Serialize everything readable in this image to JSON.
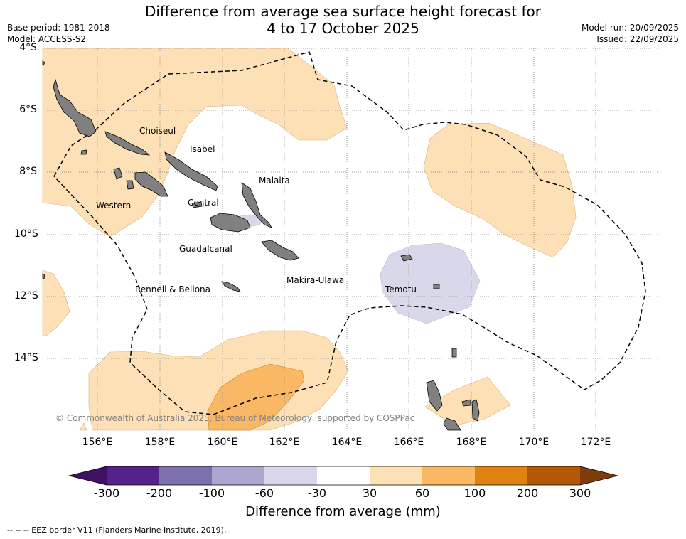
{
  "header": {
    "title_line1": "Difference from average sea surface height forecast for",
    "title_line2": "4 to 17 October 2025",
    "base_period": "Base period: 1981-2018",
    "model": "Model: ACCESS-S2",
    "model_run": "Model run: 20/09/2025",
    "issued": "Issued: 22/09/2025"
  },
  "map": {
    "lat_labels": [
      "4°S",
      "6°S",
      "8°S",
      "10°S",
      "12°S",
      "14°S"
    ],
    "lon_labels": [
      "156°E",
      "158°E",
      "160°E",
      "162°E",
      "164°E",
      "166°E",
      "168°E",
      "170°E",
      "172°E"
    ],
    "province_labels": [
      "Choiseul",
      "Isabel",
      "Malaita",
      "Western",
      "Central",
      "Guadalcanal",
      "Makira-Ulawa",
      "Rennell & Bellona",
      "Temotu"
    ],
    "copyright": "© Commonwealth of Australia 2025, Bureau of Meteorology, supported by COSPPac"
  },
  "colorbar": {
    "title": "Difference from average (mm)",
    "ticks": [
      "-300",
      "-200",
      "-100",
      "-60",
      "-30",
      "30",
      "60",
      "100",
      "200",
      "300"
    ],
    "colors": [
      "#3f1064",
      "#55228a",
      "#7e6fad",
      "#ada6d0",
      "#d9d8ea",
      "#ffffff",
      "#fde0b6",
      "#fab764",
      "#e0820f",
      "#b35805",
      "#7f3b08"
    ]
  },
  "footer": {
    "legend_note": "--  --  -- EEZ border V11 (Flanders Marine Institute, 2019)."
  }
}
